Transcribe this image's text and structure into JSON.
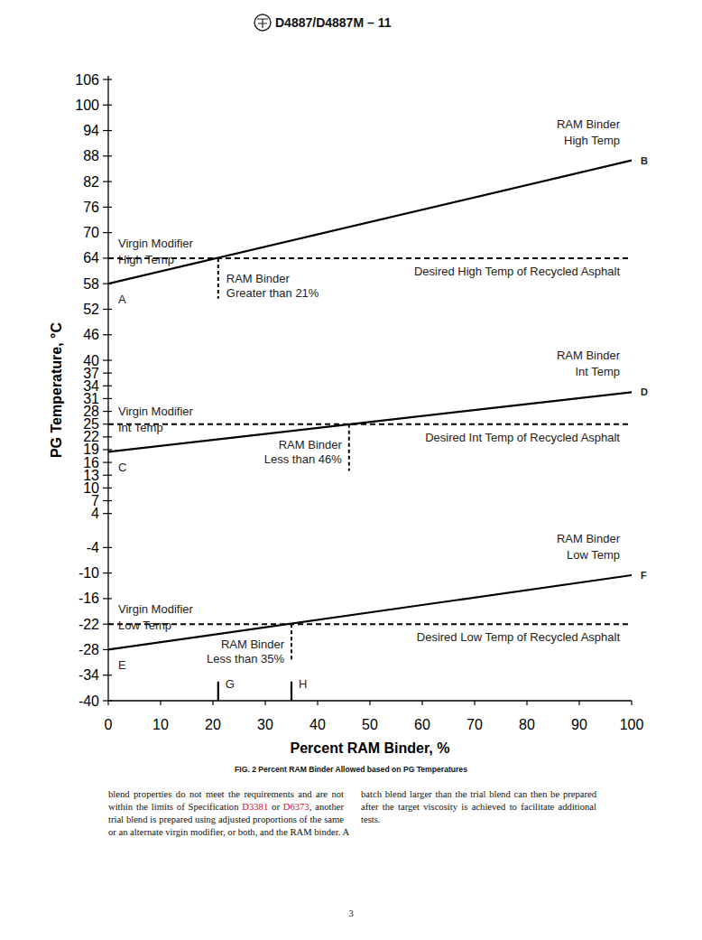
{
  "header": {
    "title": "D4887/D4887M – 11"
  },
  "chart_data": {
    "type": "line",
    "x_label": "Percent RAM Binder, %",
    "y_label": "PG Temperature, °C",
    "xlim": [
      0,
      100
    ],
    "xticks": [
      0,
      10,
      20,
      30,
      40,
      50,
      60,
      70,
      80,
      90,
      100
    ],
    "ylim": [
      -40,
      106
    ],
    "yticks": [
      106,
      100,
      94,
      88,
      82,
      76,
      70,
      64,
      58,
      52,
      46,
      40,
      37,
      34,
      31,
      28,
      25,
      22,
      19,
      16,
      13,
      10,
      7,
      4,
      -4,
      -10,
      -16,
      -22,
      -28,
      -34,
      -40
    ],
    "grid": false,
    "series": [
      {
        "x": [
          0,
          100
        ],
        "values": [
          58,
          87
        ],
        "color": "#000000",
        "point_labels": [
          "A",
          "B"
        ],
        "start_label": [
          "Virgin Modifier",
          "High Temp"
        ],
        "end_label": [
          "RAM Binder",
          "High Temp"
        ]
      },
      {
        "x": [
          0,
          100
        ],
        "values": [
          18.5,
          32.5
        ],
        "color": "#000000",
        "point_labels": [
          "C",
          "D"
        ],
        "start_label": [
          "Virgin Modifier",
          "Int Temp"
        ],
        "end_label": [
          "RAM Binder",
          "Int Temp"
        ]
      },
      {
        "x": [
          0,
          100
        ],
        "values": [
          -28,
          -10.5
        ],
        "color": "#000000",
        "point_labels": [
          "E",
          "F"
        ],
        "start_label": [
          "Virgin Modifier",
          "Low Temp"
        ],
        "end_label": [
          "RAM Binder",
          "Low Temp"
        ]
      }
    ],
    "thresholds": [
      {
        "value": 64,
        "label": "Desired High Temp of Recycled Asphalt",
        "x": 21,
        "drop_to": 54.5,
        "note": [
          "RAM Binder",
          "Greater than 21%"
        ]
      },
      {
        "value": 25,
        "label": "Desired Int Temp of Recycled Asphalt",
        "x": 46,
        "drop_to": 14,
        "note": [
          "RAM Binder",
          "Less than 46%"
        ]
      },
      {
        "value": -22,
        "label": "Desired Low Temp of Recycled Asphalt",
        "x": 35,
        "drop_to": -30.3,
        "note": [
          "RAM Binder",
          "Less than 35%"
        ]
      }
    ],
    "markers": [
      {
        "label": "G",
        "x": 21,
        "y": -35.5
      },
      {
        "label": "H",
        "x": 35,
        "y": -35.5
      }
    ]
  },
  "caption": "FIG. 2 Percent RAM Binder Allowed based on PG Temperatures",
  "body": {
    "columns": [
      [
        "blend properties do not meet the requirements and are not",
        "within the limits of Specification D3381 or D6373, another",
        "trial blend is prepared using adjusted proportions of the same",
        "or an alternate virgin modifier, or both, and the RAM binder. A"
      ],
      [
        "batch blend larger than the trial blend can then be prepared",
        "after the target viscosity is achieved to facilitate additional",
        "tests."
      ]
    ],
    "links": [
      "D3381",
      "D6373"
    ]
  },
  "page_number": "3"
}
